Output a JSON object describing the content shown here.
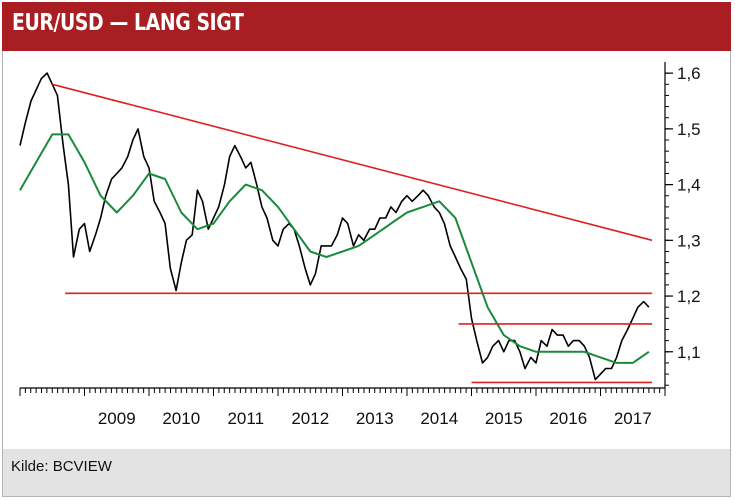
{
  "header": {
    "title": "EUR/USD — LANG SIGT"
  },
  "footer": {
    "source": "Kilde: BCVIEW"
  },
  "colors": {
    "header_bg": "#a91e22",
    "price": "#000000",
    "moving_average": "#1a8a3c",
    "trendlines": "#e02020",
    "footer_bg": "#e3e3e3"
  },
  "chart_data": {
    "type": "line",
    "title": "EUR/USD — LANG SIGT",
    "x_tick_labels": [
      "2009",
      "2010",
      "2011",
      "2012",
      "2013",
      "2014",
      "2015",
      "2016",
      "2017"
    ],
    "y_tick_labels": [
      "1,6",
      "1,5",
      "1,4",
      "1,3",
      "1,2",
      "1,1"
    ],
    "y_ticks": [
      1.6,
      1.5,
      1.4,
      1.3,
      1.2,
      1.1
    ],
    "xlim": [
      2008.0,
      2018.0
    ],
    "ylim": [
      1.035,
      1.62
    ],
    "y_axis_side": "right",
    "grid": false,
    "series": [
      {
        "style": "black-line",
        "x": [
          2008.0,
          2008.08,
          2008.17,
          2008.25,
          2008.33,
          2008.42,
          2008.5,
          2008.58,
          2008.67,
          2008.75,
          2008.83,
          2008.92,
          2009.0,
          2009.08,
          2009.17,
          2009.25,
          2009.33,
          2009.42,
          2009.5,
          2009.58,
          2009.67,
          2009.75,
          2009.83,
          2009.92,
          2010.0,
          2010.08,
          2010.17,
          2010.25,
          2010.33,
          2010.42,
          2010.5,
          2010.58,
          2010.67,
          2010.75,
          2010.83,
          2010.92,
          2011.0,
          2011.08,
          2011.17,
          2011.25,
          2011.33,
          2011.42,
          2011.5,
          2011.58,
          2011.67,
          2011.75,
          2011.83,
          2011.92,
          2012.0,
          2012.08,
          2012.17,
          2012.25,
          2012.33,
          2012.42,
          2012.5,
          2012.58,
          2012.67,
          2012.75,
          2012.83,
          2012.92,
          2013.0,
          2013.08,
          2013.17,
          2013.25,
          2013.33,
          2013.42,
          2013.5,
          2013.58,
          2013.67,
          2013.75,
          2013.83,
          2013.92,
          2014.0,
          2014.08,
          2014.17,
          2014.25,
          2014.33,
          2014.42,
          2014.5,
          2014.58,
          2014.67,
          2014.75,
          2014.83,
          2014.92,
          2015.0,
          2015.08,
          2015.17,
          2015.25,
          2015.33,
          2015.42,
          2015.5,
          2015.58,
          2015.67,
          2015.75,
          2015.83,
          2015.92,
          2016.0,
          2016.08,
          2016.17,
          2016.25,
          2016.33,
          2016.42,
          2016.5,
          2016.58,
          2016.67,
          2016.75,
          2016.83,
          2016.92,
          2017.0,
          2017.08,
          2017.17,
          2017.25,
          2017.33,
          2017.42,
          2017.5,
          2017.58,
          2017.67,
          2017.75
        ],
        "values": [
          1.47,
          1.51,
          1.55,
          1.57,
          1.59,
          1.6,
          1.58,
          1.56,
          1.47,
          1.4,
          1.27,
          1.32,
          1.33,
          1.28,
          1.31,
          1.34,
          1.38,
          1.41,
          1.42,
          1.43,
          1.45,
          1.48,
          1.5,
          1.45,
          1.43,
          1.37,
          1.35,
          1.33,
          1.25,
          1.21,
          1.26,
          1.3,
          1.31,
          1.39,
          1.37,
          1.32,
          1.34,
          1.36,
          1.4,
          1.45,
          1.47,
          1.45,
          1.43,
          1.44,
          1.4,
          1.36,
          1.34,
          1.3,
          1.29,
          1.32,
          1.33,
          1.32,
          1.29,
          1.25,
          1.22,
          1.24,
          1.29,
          1.29,
          1.29,
          1.31,
          1.34,
          1.33,
          1.29,
          1.31,
          1.3,
          1.32,
          1.32,
          1.34,
          1.34,
          1.36,
          1.35,
          1.37,
          1.38,
          1.37,
          1.38,
          1.39,
          1.38,
          1.36,
          1.35,
          1.33,
          1.29,
          1.27,
          1.25,
          1.23,
          1.16,
          1.12,
          1.08,
          1.09,
          1.11,
          1.12,
          1.1,
          1.12,
          1.12,
          1.1,
          1.07,
          1.09,
          1.08,
          1.12,
          1.11,
          1.14,
          1.13,
          1.13,
          1.11,
          1.12,
          1.12,
          1.11,
          1.09,
          1.05,
          1.06,
          1.07,
          1.07,
          1.09,
          1.12,
          1.14,
          1.16,
          1.18,
          1.19,
          1.18
        ]
      },
      {
        "style": "green-moving-average",
        "x": [
          2008.0,
          2008.25,
          2008.5,
          2008.75,
          2009.0,
          2009.25,
          2009.5,
          2009.75,
          2010.0,
          2010.25,
          2010.5,
          2010.75,
          2011.0,
          2011.25,
          2011.5,
          2011.75,
          2012.0,
          2012.25,
          2012.5,
          2012.75,
          2013.0,
          2013.25,
          2013.5,
          2013.75,
          2014.0,
          2014.25,
          2014.5,
          2014.75,
          2015.0,
          2015.25,
          2015.5,
          2015.75,
          2016.0,
          2016.25,
          2016.5,
          2016.75,
          2017.0,
          2017.25,
          2017.5,
          2017.75
        ],
        "values": [
          1.39,
          1.44,
          1.49,
          1.49,
          1.44,
          1.38,
          1.35,
          1.38,
          1.42,
          1.41,
          1.35,
          1.32,
          1.33,
          1.37,
          1.4,
          1.39,
          1.36,
          1.32,
          1.28,
          1.27,
          1.28,
          1.29,
          1.31,
          1.33,
          1.35,
          1.36,
          1.37,
          1.34,
          1.26,
          1.18,
          1.13,
          1.11,
          1.1,
          1.1,
          1.1,
          1.1,
          1.09,
          1.08,
          1.08,
          1.1
        ]
      }
    ],
    "lines": [
      {
        "kind": "trendline",
        "x": [
          2008.5,
          2017.8
        ],
        "y": [
          1.58,
          1.3
        ]
      },
      {
        "kind": "horizontal",
        "x": [
          2008.7,
          2017.8
        ],
        "y": [
          1.205,
          1.205
        ]
      },
      {
        "kind": "horizontal",
        "x": [
          2014.8,
          2017.8
        ],
        "y": [
          1.15,
          1.15
        ]
      },
      {
        "kind": "horizontal",
        "x": [
          2015.0,
          2017.8
        ],
        "y": [
          1.045,
          1.045
        ]
      }
    ]
  }
}
